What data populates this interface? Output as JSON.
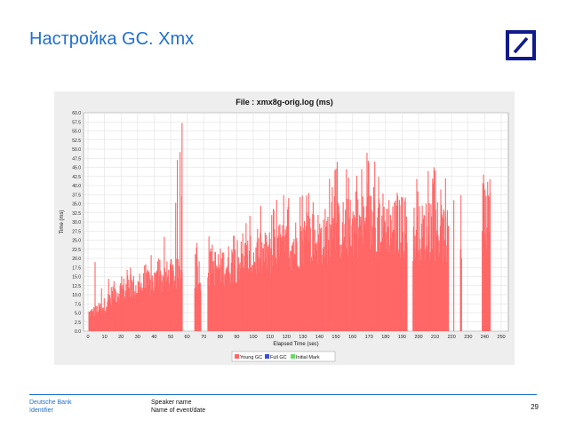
{
  "slide": {
    "title": "Настройка GC. Xmx",
    "page_number": "29"
  },
  "logo": {
    "icon": "deutsche-bank-slash-logo",
    "color": "#0f1a8c"
  },
  "footer": {
    "brand": "Deutsche Bank",
    "identifier": "Identifier",
    "speaker": "Speaker name",
    "event": "Name of event/date",
    "rule_color": "#1f6fd0"
  },
  "chart_data": {
    "type": "bar",
    "title": "File : xmx8g-orig.log (ms)",
    "xlabel": "Elapsed Time (sec)",
    "ylabel": "Time (ms)",
    "xlim": [
      0,
      250
    ],
    "ylim": [
      0,
      60
    ],
    "x_ticks": [
      "0",
      "10",
      "20",
      "30",
      "40",
      "50",
      "60",
      "70",
      "80",
      "90",
      "100",
      "110",
      "120",
      "130",
      "140",
      "150",
      "160",
      "170",
      "180",
      "190",
      "200",
      "210",
      "220",
      "230",
      "240",
      "250"
    ],
    "y_ticks": [
      "0.0",
      "2.5",
      "5.0",
      "7.5",
      "10.0",
      "12.5",
      "15.0",
      "17.5",
      "20.0",
      "22.5",
      "25.0",
      "27.5",
      "30.0",
      "32.5",
      "35.0",
      "37.5",
      "40.0",
      "42.5",
      "45.0",
      "47.5",
      "50.0",
      "52.5",
      "55.0",
      "57.5",
      "60.0"
    ],
    "grid": true,
    "legend_position": "bottom",
    "series": [
      {
        "name": "Young GC",
        "color": "#ff6666"
      },
      {
        "name": "Full GC",
        "color": "#3b4fd8"
      },
      {
        "name": "Initial Mark",
        "color": "#66dd66"
      }
    ],
    "young_gc_profile": {
      "time_sec": [
        0,
        5,
        10,
        15,
        20,
        25,
        30,
        35,
        40,
        45,
        50,
        55,
        60,
        65,
        70,
        75,
        80,
        85,
        90,
        95,
        100,
        105,
        110,
        115,
        120,
        125,
        130,
        135,
        140,
        145,
        150,
        155,
        160,
        165,
        170,
        175,
        180,
        185,
        190,
        195,
        200,
        205,
        210,
        215,
        220,
        240
      ],
      "typical_ms": [
        6,
        7,
        9,
        13,
        14,
        15,
        15,
        16,
        17,
        18,
        19,
        19,
        20,
        20,
        20,
        22,
        22,
        23,
        24,
        25,
        25,
        26,
        27,
        28,
        29,
        30,
        31,
        32,
        32,
        33,
        34,
        35,
        36,
        36,
        37,
        37,
        37,
        36,
        36,
        34,
        33,
        35,
        34,
        33,
        30,
        36
      ],
      "peak_ms": [
        19,
        12,
        16,
        19,
        18,
        19,
        19,
        22,
        24,
        26,
        26,
        57,
        30,
        26,
        26,
        27,
        28,
        30,
        31,
        32,
        33,
        35,
        36,
        37,
        38,
        40,
        42,
        43,
        45,
        44,
        46,
        47,
        49,
        45,
        48,
        47,
        47,
        44,
        42,
        39,
        44,
        42,
        45,
        37,
        42,
        43
      ]
    }
  }
}
